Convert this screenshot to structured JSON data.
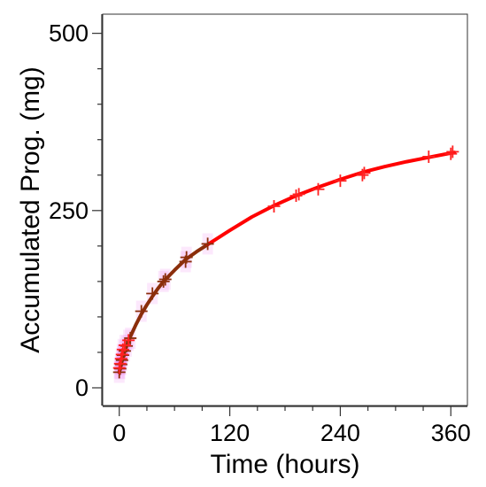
{
  "chart_data": {
    "type": "scatter",
    "title": "",
    "xlabel": "Time (hours)",
    "ylabel": "Accumulated Prog. (mg)",
    "xlim": [
      -18,
      378
    ],
    "ylim": [
      -25,
      527
    ],
    "x_ticks": [
      0,
      120,
      240,
      360
    ],
    "y_ticks": [
      0,
      250,
      500
    ],
    "x_tick_labels": [
      "0",
      "120",
      "240",
      "360"
    ],
    "y_tick_labels": [
      "0",
      "250",
      "500"
    ],
    "grid": false,
    "legend": "none",
    "series": [
      {
        "style": "markers",
        "marker": "plus",
        "color": "#8b2e0b",
        "points": [
          [
            0,
            22
          ],
          [
            1,
            27
          ],
          [
            2,
            33
          ],
          [
            3,
            39
          ],
          [
            4,
            46
          ],
          [
            6,
            52
          ],
          [
            8,
            59
          ],
          [
            12,
            70
          ],
          [
            24,
            108
          ],
          [
            36,
            133
          ],
          [
            48,
            150
          ],
          [
            50,
            153
          ],
          [
            72,
            178
          ],
          [
            73,
            184
          ],
          [
            96,
            203
          ]
        ]
      },
      {
        "style": "markers",
        "marker": "plus",
        "color": "#ff2020",
        "points": [
          [
            0,
            28
          ],
          [
            1,
            34
          ],
          [
            2,
            41
          ],
          [
            3,
            47
          ],
          [
            4,
            54
          ],
          [
            6,
            60
          ],
          [
            10,
            67
          ],
          [
            168,
            256
          ],
          [
            192,
            271
          ],
          [
            195,
            273
          ],
          [
            216,
            280
          ],
          [
            240,
            292
          ],
          [
            264,
            300
          ],
          [
            266,
            303
          ],
          [
            336,
            326
          ],
          [
            360,
            330
          ],
          [
            362,
            333
          ]
        ]
      },
      {
        "style": "line",
        "color": "#8b2e0b",
        "points": [
          [
            0,
            22
          ],
          [
            2,
            33
          ],
          [
            4,
            43
          ],
          [
            6,
            52
          ],
          [
            9,
            62
          ],
          [
            12,
            72
          ],
          [
            18,
            89
          ],
          [
            24,
            104
          ],
          [
            30,
            117
          ],
          [
            36,
            129
          ],
          [
            42,
            140
          ],
          [
            48,
            150
          ],
          [
            60,
            166
          ],
          [
            72,
            181
          ],
          [
            84,
            192
          ],
          [
            96,
            202
          ]
        ]
      },
      {
        "style": "line",
        "color": "#ff0000",
        "points": [
          [
            96,
            202
          ],
          [
            120,
            222
          ],
          [
            144,
            241
          ],
          [
            168,
            257
          ],
          [
            192,
            271
          ],
          [
            216,
            283
          ],
          [
            240,
            294
          ],
          [
            264,
            304
          ],
          [
            288,
            312
          ],
          [
            312,
            319
          ],
          [
            336,
            325
          ],
          [
            360,
            331
          ],
          [
            364,
            332
          ]
        ]
      }
    ]
  }
}
